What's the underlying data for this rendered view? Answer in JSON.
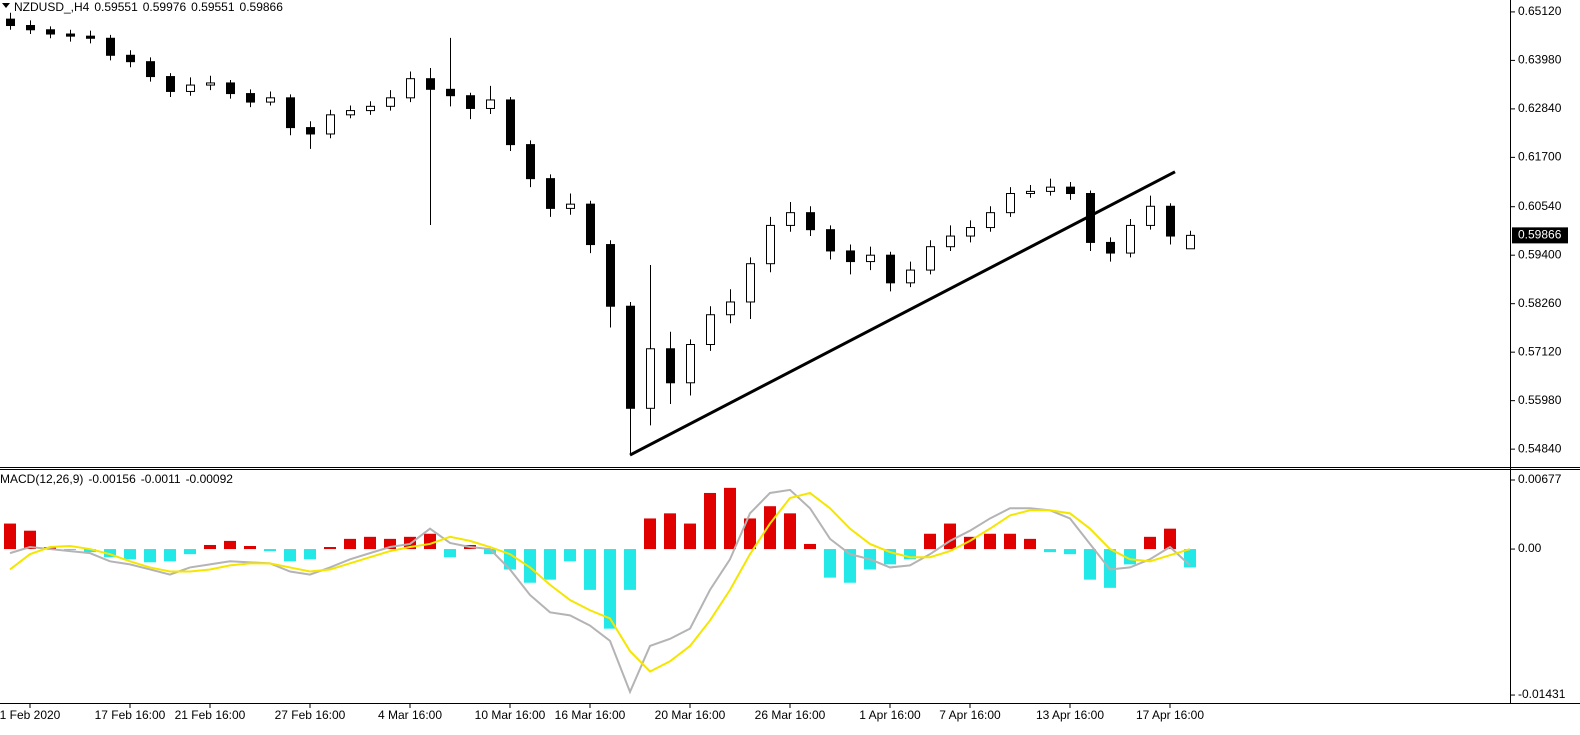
{
  "chart_data": [
    {
      "type": "candlestick",
      "title": "NZDUSD_,H4",
      "readout": [
        0.59551,
        0.59976,
        0.59551,
        0.59866
      ],
      "categories": [
        null,
        "1 Feb 2020",
        null,
        null,
        null,
        null,
        "17 Feb 16:00",
        null,
        null,
        null,
        "21 Feb 16:00",
        null,
        null,
        null,
        null,
        "27 Feb 16:00",
        null,
        null,
        null,
        null,
        "4 Mar 16:00",
        null,
        null,
        null,
        null,
        "10 Mar 16:00",
        null,
        null,
        null,
        "16 Mar 16:00",
        null,
        null,
        null,
        null,
        "20 Mar 16:00",
        null,
        null,
        null,
        null,
        "26 Mar 16:00",
        null,
        null,
        null,
        null,
        "1 Apr 16:00",
        null,
        null,
        null,
        "7 Apr 16:00",
        null,
        null,
        null,
        null,
        "13 Apr 16:00",
        null,
        null,
        null,
        null,
        "17 Apr 16:00",
        null
      ],
      "open": [
        0.6495,
        0.648,
        0.647,
        0.646,
        0.6455,
        0.645,
        0.641,
        0.6395,
        0.636,
        0.6325,
        0.634,
        0.6345,
        0.632,
        0.63,
        0.631,
        0.624,
        0.6225,
        0.627,
        0.628,
        0.629,
        0.631,
        0.6355,
        0.633,
        0.6315,
        0.6285,
        0.6305,
        0.62,
        0.612,
        0.605,
        0.606,
        0.5965,
        0.582,
        0.558,
        0.572,
        0.564,
        0.573,
        0.58,
        0.583,
        0.592,
        0.601,
        0.604,
        0.6,
        0.595,
        0.5925,
        0.594,
        0.5875,
        0.5905,
        0.596,
        0.5985,
        0.6005,
        0.604,
        0.6085,
        0.609,
        0.61,
        0.6085,
        0.597,
        0.5945,
        0.601,
        0.6055,
        0.59551
      ],
      "high": [
        0.651,
        0.6492,
        0.6478,
        0.647,
        0.6468,
        0.6458,
        0.6422,
        0.6405,
        0.6368,
        0.6358,
        0.6362,
        0.6352,
        0.633,
        0.6325,
        0.6318,
        0.6255,
        0.6282,
        0.6292,
        0.6302,
        0.6328,
        0.6372,
        0.638,
        0.6451,
        0.6322,
        0.6338,
        0.6312,
        0.621,
        0.613,
        0.6085,
        0.6068,
        0.5975,
        0.583,
        0.5917,
        0.576,
        0.5742,
        0.582,
        0.586,
        0.5935,
        0.603,
        0.6065,
        0.6055,
        0.601,
        0.5965,
        0.596,
        0.5948,
        0.5925,
        0.5975,
        0.601,
        0.6022,
        0.6055,
        0.61,
        0.6105,
        0.612,
        0.6112,
        0.6092,
        0.5982,
        0.6025,
        0.608,
        0.6062,
        0.59976
      ],
      "low": [
        0.647,
        0.646,
        0.645,
        0.6442,
        0.6438,
        0.6398,
        0.6382,
        0.6348,
        0.6312,
        0.6315,
        0.6328,
        0.6308,
        0.6288,
        0.6292,
        0.6222,
        0.619,
        0.6215,
        0.6262,
        0.627,
        0.628,
        0.63,
        0.6011,
        0.629,
        0.626,
        0.6272,
        0.6185,
        0.61,
        0.603,
        0.6035,
        0.5945,
        0.577,
        0.547,
        0.554,
        0.559,
        0.561,
        0.5715,
        0.578,
        0.579,
        0.59,
        0.5995,
        0.5985,
        0.593,
        0.5895,
        0.5905,
        0.5855,
        0.5865,
        0.5895,
        0.595,
        0.597,
        0.5995,
        0.603,
        0.6075,
        0.608,
        0.607,
        0.595,
        0.5925,
        0.5935,
        0.6,
        0.5965,
        0.59551
      ],
      "close": [
        0.648,
        0.647,
        0.646,
        0.6455,
        0.645,
        0.641,
        0.6395,
        0.636,
        0.6325,
        0.634,
        0.6345,
        0.632,
        0.63,
        0.631,
        0.624,
        0.6225,
        0.627,
        0.628,
        0.629,
        0.631,
        0.6355,
        0.633,
        0.6315,
        0.6285,
        0.6305,
        0.62,
        0.612,
        0.605,
        0.606,
        0.5965,
        0.582,
        0.558,
        0.572,
        0.564,
        0.573,
        0.58,
        0.583,
        0.592,
        0.601,
        0.604,
        0.6,
        0.595,
        0.5925,
        0.594,
        0.5875,
        0.5905,
        0.596,
        0.5985,
        0.6005,
        0.604,
        0.6085,
        0.609,
        0.61,
        0.6085,
        0.597,
        0.5945,
        0.601,
        0.6055,
        0.5985,
        0.59866
      ],
      "up_color": "#ffffff",
      "down_color": "#000000",
      "line_color": "#000000",
      "trendline": {
        "from": [
          31,
          0.547
        ],
        "to": [
          58.25,
          0.6136
        ],
        "color": "#000000"
      },
      "ylim": [
        0.5442,
        0.654
      ],
      "yticks": [
        {
          "value": 0.6512,
          "label": "0.65120"
        },
        {
          "value": 0.6398,
          "label": "0.63980"
        },
        {
          "value": 0.6284,
          "label": "0.62840"
        },
        {
          "value": 0.617,
          "label": "0.61700"
        },
        {
          "value": 0.6054,
          "label": "0.60540"
        },
        {
          "value": 0.594,
          "label": "0.59400"
        },
        {
          "value": 0.5826,
          "label": "0.58260"
        },
        {
          "value": 0.5712,
          "label": "0.57120"
        },
        {
          "value": 0.5598,
          "label": "0.55980"
        },
        {
          "value": 0.5484,
          "label": "0.54840"
        }
      ]
    },
    {
      "type": "macd",
      "title": "MACD(12,26,9)",
      "readout": [
        -0.00156,
        -0.0011,
        -0.00092
      ],
      "histogram": {
        "positive_color": "#e00000",
        "negative_color": "#22e8e8",
        "values": [
          0.0025,
          0.0018,
          0.0002,
          -0.0001,
          -0.0003,
          -0.0008,
          -0.001,
          -0.0013,
          -0.0012,
          -0.0005,
          0.0004,
          0.0008,
          0.0003,
          -0.0002,
          -0.0012,
          -0.001,
          0.0002,
          0.001,
          0.0012,
          0.001,
          0.0012,
          0.0015,
          -0.0008,
          0.0004,
          -0.0005,
          -0.002,
          -0.0033,
          -0.003,
          -0.0012,
          -0.004,
          -0.0078,
          -0.004,
          0.003,
          0.0035,
          0.0025,
          0.0055,
          0.006,
          0.003,
          0.0042,
          0.0035,
          0.0005,
          -0.0028,
          -0.0033,
          -0.002,
          -0.0015,
          -0.001,
          0.0015,
          0.0025,
          0.0012,
          0.0015,
          0.0015,
          0.001,
          -0.0003,
          -0.0005,
          -0.003,
          -0.0038,
          -0.0015,
          0.0012,
          0.002,
          -0.0018
        ]
      },
      "series": [
        {
          "color": "#b4b4b4",
          "values": [
            -0.0004,
            0.0002,
            0,
            -0.0002,
            -0.0004,
            -0.0012,
            -0.0015,
            -0.002,
            -0.0025,
            -0.0018,
            -0.0015,
            -0.0012,
            -0.0013,
            -0.0014,
            -0.0022,
            -0.0025,
            -0.0018,
            -0.001,
            -0.0004,
            0.0002,
            0.0005,
            0.002,
            0.0006,
            0.0002,
            0,
            -0.002,
            -0.0045,
            -0.0062,
            -0.0065,
            -0.0075,
            -0.009,
            -0.014,
            -0.0095,
            -0.0088,
            -0.0078,
            -0.004,
            -0.001,
            0.0035,
            0.0055,
            0.0058,
            0.004,
            0.001,
            -0.0005,
            -0.001,
            -0.0018,
            -0.0016,
            -0.0005,
            0.0008,
            0.0018,
            0.003,
            0.004,
            0.004,
            0.0038,
            0.003,
            0.0005,
            -0.002,
            -0.0018,
            -0.001,
            0.0002,
            -0.0016
          ]
        },
        {
          "color": "#f5e600",
          "values": [
            -0.002,
            -0.0005,
            0.0002,
            0.0003,
            0,
            -0.0005,
            -0.0012,
            -0.0018,
            -0.0022,
            -0.0022,
            -0.002,
            -0.0016,
            -0.0014,
            -0.0014,
            -0.0018,
            -0.0022,
            -0.002,
            -0.0014,
            -0.0008,
            -0.0002,
            0.0002,
            0.0005,
            0.0012,
            0.0008,
            0.0002,
            -0.0005,
            -0.0018,
            -0.0035,
            -0.005,
            -0.006,
            -0.0068,
            -0.01,
            -0.012,
            -0.011,
            -0.0095,
            -0.007,
            -0.004,
            -0.0005,
            0.0025,
            0.005,
            0.0055,
            0.004,
            0.002,
            0.0005,
            -0.0003,
            -0.0008,
            -0.0008,
            -0.0002,
            0.0008,
            0.002,
            0.0033,
            0.0038,
            0.0038,
            0.0035,
            0.002,
            0,
            -0.001,
            -0.0012,
            -0.0006,
            0
          ]
        }
      ],
      "ylim": [
        -0.01509,
        0.00775
      ],
      "yticks": [
        0.00677,
        {
          "value": 0,
          "label": "0.00"
        },
        -0.01431
      ]
    }
  ]
}
